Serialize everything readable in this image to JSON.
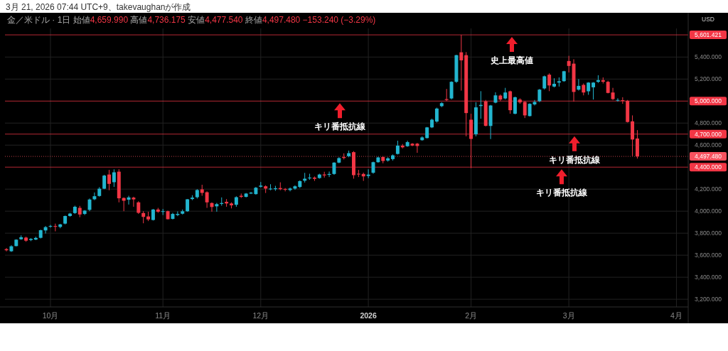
{
  "chart_data": {
    "type": "candlestick",
    "title": "3月 21, 2026 07:44 UTC+9、takevaughanが作成",
    "subtitle": "金／米ドル · 1日 始値4,659.990 高値4,736.175 安値4,477.540 終値4,497.480 −153.240 (−3.29%)",
    "ylabel": "USD",
    "categories": [
      null,
      null,
      null,
      null,
      null,
      null,
      null,
      null,
      null,
      "10月",
      null,
      null,
      null,
      null,
      null,
      null,
      null,
      null,
      null,
      null,
      null,
      null,
      null,
      null,
      null,
      null,
      null,
      null,
      null,
      null,
      null,
      null,
      "11月",
      null,
      null,
      null,
      null,
      null,
      null,
      null,
      null,
      null,
      null,
      null,
      null,
      null,
      null,
      null,
      null,
      null,
      null,
      null,
      "12月",
      null,
      null,
      null,
      null,
      null,
      null,
      null,
      null,
      null,
      null,
      null,
      null,
      null,
      null,
      null,
      null,
      null,
      null,
      null,
      null,
      null,
      "2026",
      null,
      null,
      null,
      null,
      null,
      null,
      null,
      null,
      null,
      null,
      null,
      null,
      null,
      null,
      null,
      null,
      null,
      null,
      null,
      null,
      "2月",
      null,
      null,
      null,
      null,
      null,
      null,
      null,
      null,
      null,
      null,
      null,
      null,
      null,
      null,
      null,
      null,
      null,
      null,
      null,
      "3月",
      null,
      null,
      null,
      null,
      null,
      null,
      null,
      null,
      null,
      null,
      null,
      null,
      null,
      null,
      null,
      null,
      null,
      null,
      null,
      null,
      null,
      "4月",
      null,
      null
    ],
    "ohlc": [
      [
        3655,
        3665,
        3635,
        3645
      ],
      [
        3636,
        3690,
        3630,
        3681
      ],
      [
        3683,
        3745,
        3680,
        3741
      ],
      [
        3745,
        3780,
        3740,
        3763
      ],
      [
        3760,
        3768,
        3722,
        3732
      ],
      [
        3738,
        3755,
        3728,
        3748
      ],
      [
        3742,
        3768,
        3737,
        3757
      ],
      [
        3758,
        3832,
        3752,
        3827
      ],
      [
        3825,
        3865,
        3797,
        3855
      ],
      [
        3860,
        3875,
        3850,
        3866
      ],
      [
        3865,
        3887,
        3817,
        3858
      ],
      [
        3857,
        3885,
        3845,
        3880
      ],
      [
        3887,
        3960,
        3880,
        3956
      ],
      [
        3956,
        3985,
        3950,
        3978
      ],
      [
        3983,
        4050,
        3975,
        4040
      ],
      [
        4030,
        4048,
        3945,
        3970
      ],
      [
        3975,
        4010,
        3965,
        4005
      ],
      [
        4012,
        4115,
        4000,
        4106
      ],
      [
        4108,
        4170,
        4100,
        4136
      ],
      [
        4138,
        4218,
        4132,
        4204
      ],
      [
        4204,
        4330,
        4200,
        4323
      ],
      [
        4333,
        4375,
        4190,
        4248
      ],
      [
        4263,
        4380,
        4220,
        4353
      ],
      [
        4359,
        4381,
        4080,
        4117
      ],
      [
        4120,
        4125,
        4000,
        4095
      ],
      [
        4104,
        4140,
        4060,
        4125
      ],
      [
        4123,
        4131,
        4040,
        4107
      ],
      [
        4080,
        4090,
        3975,
        3985
      ],
      [
        3983,
        4000,
        3890,
        3948
      ],
      [
        3952,
        3995,
        3910,
        3925
      ],
      [
        3920,
        4020,
        3915,
        4015
      ],
      [
        4015,
        4030,
        3985,
        3995
      ],
      [
        3995,
        4020,
        3965,
        4000
      ],
      [
        4000,
        4005,
        3925,
        3927
      ],
      [
        3930,
        3985,
        3925,
        3975
      ],
      [
        3965,
        3998,
        3955,
        3975
      ],
      [
        3977,
        4015,
        3970,
        3999
      ],
      [
        3999,
        4110,
        3995,
        4108
      ],
      [
        4110,
        4145,
        4100,
        4123
      ],
      [
        4127,
        4200,
        4115,
        4192
      ],
      [
        4198,
        4240,
        4140,
        4166
      ],
      [
        4172,
        4180,
        4030,
        4080
      ],
      [
        4074,
        4080,
        3995,
        4038
      ],
      [
        4044,
        4075,
        3995,
        4064
      ],
      [
        4066,
        4125,
        4050,
        4074
      ],
      [
        4085,
        4110,
        4040,
        4070
      ],
      [
        4070,
        4080,
        4025,
        4053
      ],
      [
        4058,
        4135,
        4040,
        4127
      ],
      [
        4140,
        4160,
        4120,
        4130
      ],
      [
        4130,
        4165,
        4125,
        4160
      ],
      [
        4160,
        4175,
        4155,
        4168
      ],
      [
        4155,
        4220,
        4150,
        4213
      ],
      [
        4222,
        4265,
        4215,
        4232
      ],
      [
        4226,
        4235,
        4165,
        4205
      ],
      [
        4198,
        4245,
        4190,
        4205
      ],
      [
        4200,
        4230,
        4185,
        4208
      ],
      [
        4210,
        4262,
        4190,
        4200
      ],
      [
        4202,
        4210,
        4180,
        4195
      ],
      [
        4192,
        4215,
        4180,
        4206
      ],
      [
        4205,
        4235,
        4195,
        4226
      ],
      [
        4220,
        4280,
        4210,
        4273
      ],
      [
        4277,
        4348,
        4260,
        4295
      ],
      [
        4298,
        4340,
        4285,
        4305
      ],
      [
        4305,
        4315,
        4275,
        4294
      ],
      [
        4301,
        4340,
        4295,
        4333
      ],
      [
        4333,
        4358,
        4305,
        4325
      ],
      [
        4330,
        4360,
        4310,
        4338
      ],
      [
        4338,
        4445,
        4330,
        4441
      ],
      [
        4441,
        4490,
        4435,
        4482
      ],
      [
        4492,
        4525,
        4470,
        4483
      ],
      [
        4499,
        4550,
        4490,
        4527
      ],
      [
        4536,
        4545,
        4295,
        4327
      ],
      [
        4340,
        4375,
        4310,
        4335
      ],
      [
        4338,
        4350,
        4275,
        4316
      ],
      [
        4320,
        4380,
        4300,
        4332
      ],
      [
        4349,
        4450,
        4340,
        4445
      ],
      [
        4445,
        4495,
        4440,
        4488
      ],
      [
        4492,
        4500,
        4435,
        4456
      ],
      [
        4460,
        4490,
        4450,
        4480
      ],
      [
        4473,
        4515,
        4460,
        4507
      ],
      [
        4520,
        4640,
        4515,
        4595
      ],
      [
        4595,
        4610,
        4570,
        4580
      ],
      [
        4590,
        4640,
        4585,
        4627
      ],
      [
        4613,
        4618,
        4590,
        4596
      ],
      [
        4613,
        4620,
        4530,
        4592
      ],
      [
        4645,
        4680,
        4640,
        4670
      ],
      [
        4664,
        4765,
        4660,
        4761
      ],
      [
        4761,
        4840,
        4755,
        4831
      ],
      [
        4814,
        4940,
        4805,
        4932
      ],
      [
        4954,
        4990,
        4945,
        4981
      ],
      [
        5018,
        5110,
        5000,
        5010
      ],
      [
        5024,
        5180,
        5015,
        5175
      ],
      [
        5175,
        5420,
        5165,
        5417
      ],
      [
        5443,
        5601.421,
        5095,
        5370
      ],
      [
        5417,
        5445,
        4680,
        4891
      ],
      [
        4831,
        4885,
        4391,
        4656
      ],
      [
        4698,
        4990,
        4680,
        4943
      ],
      [
        4955,
        5090,
        4840,
        4965
      ],
      [
        4997,
        5010,
        4770,
        4775
      ],
      [
        4774,
        4965,
        4655,
        4960
      ],
      [
        4986,
        5080,
        4980,
        5052
      ],
      [
        5050,
        5060,
        5000,
        5014
      ],
      [
        5024,
        5120,
        5015,
        5078
      ],
      [
        5089,
        5095,
        4885,
        4917
      ],
      [
        4885,
        5040,
        4880,
        5035
      ],
      [
        5014,
        5025,
        4975,
        4988
      ],
      [
        4992,
        5000,
        4846,
        4870
      ],
      [
        4864,
        4980,
        4860,
        4975
      ],
      [
        4970,
        5010,
        4960,
        4992
      ],
      [
        4999,
        5110,
        4990,
        5104
      ],
      [
        5115,
        5232,
        5105,
        5225
      ],
      [
        5240,
        5252,
        5090,
        5142
      ],
      [
        5132,
        5207,
        5125,
        5157
      ],
      [
        5168,
        5215,
        5132,
        5180
      ],
      [
        5181,
        5275,
        5175,
        5271
      ],
      [
        5364,
        5411,
        5260,
        5319
      ],
      [
        5340,
        5380,
        4995,
        5083
      ],
      [
        5104,
        5200,
        5095,
        5138
      ],
      [
        5147,
        5160,
        5052,
        5078
      ],
      [
        5089,
        5172,
        5057,
        5168
      ],
      [
        5125,
        5172,
        5014,
        5168
      ],
      [
        5175,
        5235,
        5165,
        5190
      ],
      [
        5190,
        5215,
        5160,
        5176
      ],
      [
        5175,
        5185,
        5070,
        5074
      ],
      [
        5078,
        5120,
        5010,
        5018
      ],
      [
        5005,
        5025,
        4995,
        5010
      ],
      [
        5008,
        5035,
        4975,
        5002
      ],
      [
        5003,
        5010,
        4805,
        4810
      ],
      [
        4816,
        4870,
        4500,
        4651
      ],
      [
        4659.99,
        4736.175,
        4477.54,
        4497.48
      ],
      null,
      null,
      null,
      null,
      null,
      null,
      null,
      null,
      null,
      null
    ],
    "colors": [
      "#f23645",
      "#22b5cf",
      "#22b5cf",
      "#22b5cf",
      "#f23645",
      "#22b5cf",
      "#22b5cf",
      "#22b5cf",
      "#22b5cf",
      "#22b5cf",
      "#f23645",
      "#22b5cf",
      "#22b5cf",
      "#22b5cf",
      "#22b5cf",
      "#f23645",
      "#22b5cf",
      "#22b5cf",
      "#22b5cf",
      "#22b5cf",
      "#22b5cf",
      "#f23645",
      "#22b5cf",
      "#f23645",
      "#f23645",
      "#22b5cf",
      "#f23645",
      "#f23645",
      "#f23645",
      "#f23645",
      "#22b5cf",
      "#f23645",
      "#22b5cf",
      "#f23645",
      "#22b5cf",
      "#22b5cf",
      "#22b5cf",
      "#22b5cf",
      "#22b5cf",
      "#22b5cf",
      "#f23645",
      "#f23645",
      "#f23645",
      "#22b5cf",
      "#22b5cf",
      "#f23645",
      "#f23645",
      "#22b5cf",
      "#f23645",
      "#22b5cf",
      "#22b5cf",
      "#22b5cf",
      "#22b5cf",
      "#f23645",
      "#22b5cf",
      "#22b5cf",
      "#f23645",
      "#f23645",
      "#22b5cf",
      "#22b5cf",
      "#22b5cf",
      "#22b5cf",
      "#22b5cf",
      "#f23645",
      "#22b5cf",
      "#f23645",
      "#22b5cf",
      "#22b5cf",
      "#22b5cf",
      "#f23645",
      "#22b5cf",
      "#f23645",
      "#f23645",
      "#f23645",
      "#22b5cf",
      "#22b5cf",
      "#22b5cf",
      "#f23645",
      "#22b5cf",
      "#22b5cf",
      "#22b5cf",
      "#f23645",
      "#22b5cf",
      "#f23645",
      "#f23645",
      "#22b5cf",
      "#22b5cf",
      "#22b5cf",
      "#22b5cf",
      "#22b5cf",
      "#f23645",
      "#22b5cf",
      "#22b5cf",
      "#f23645",
      "#f23645",
      "#f23645",
      "#22b5cf",
      "#22b5cf",
      "#f23645",
      "#22b5cf",
      "#22b5cf",
      "#f23645",
      "#22b5cf",
      "#f23645",
      "#22b5cf",
      "#f23645",
      "#f23645",
      "#22b5cf",
      "#22b5cf",
      "#22b5cf",
      "#22b5cf",
      "#f23645",
      "#22b5cf",
      "#22b5cf",
      "#22b5cf",
      "#f23645",
      "#f23645",
      "#22b5cf",
      "#f23645",
      "#22b5cf",
      "#22b5cf",
      "#22b5cf",
      "#f23645",
      "#f23645",
      "#f23645",
      "#22b5cf",
      "#f23645",
      "#f23645",
      "#f23645",
      "#f23645",
      null,
      null,
      null,
      null,
      null,
      null,
      null,
      null,
      null,
      null
    ],
    "ylim": [
      3130,
      5660
    ],
    "yticks": [
      {
        "value": 3200,
        "label": "3,200.000"
      },
      {
        "value": 3400,
        "label": "3,400.000"
      },
      {
        "value": 3600,
        "label": "3,600.000"
      },
      {
        "value": 3800,
        "label": "3,800.000"
      },
      {
        "value": 4000,
        "label": "4,000.000"
      },
      {
        "value": 4200,
        "label": "4,200.000"
      },
      {
        "value": 4600,
        "label": "4,600.000"
      },
      {
        "value": 4800,
        "label": "4,800.000"
      },
      {
        "value": 5200,
        "label": "5,200.000"
      },
      {
        "value": 5400,
        "label": "5,400.000"
      }
    ],
    "grid": true,
    "ref_lines": [
      {
        "axis": "y",
        "value": 5601.421,
        "label": "5,601.421",
        "color": "#f23645"
      },
      {
        "axis": "y",
        "value": 5000,
        "label": "5,000.000",
        "color": "#f23645"
      },
      {
        "axis": "y",
        "value": 4700,
        "label": "4,700.000",
        "color": "#f23645"
      },
      {
        "axis": "y",
        "value": 4400,
        "label": "4,400.000",
        "color": "#f23645"
      },
      {
        "axis": "y",
        "value": 4497.48,
        "label": "4,497.480",
        "color": "#f7525f",
        "line_style": "dotted"
      }
    ],
    "annotations": [
      {
        "text": "史上最高値",
        "y": 5601.421
      },
      {
        "text": "キリ番抵抗線",
        "y": 5000
      },
      {
        "text": "キリ番抵抗線",
        "y": 4700
      },
      {
        "text": "キリ番抵抗線",
        "y": 4400
      }
    ]
  }
}
